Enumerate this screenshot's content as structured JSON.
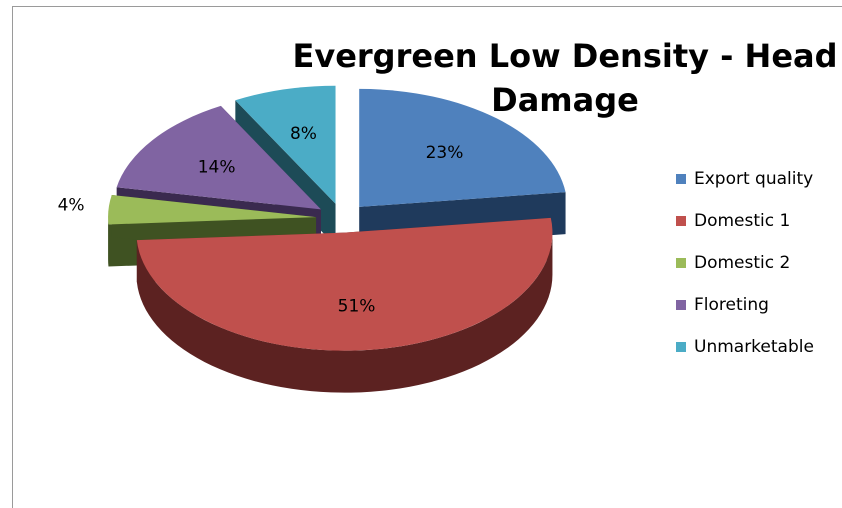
{
  "chart_data": {
    "type": "pie",
    "title": "Evergreen Low Density - Head Damage",
    "title_lines": [
      "Evergreen Low Density - Head",
      "Damage"
    ],
    "legend_position": "right",
    "slices": [
      {
        "label": "Export quality",
        "value": 23,
        "display": "23%",
        "color": "#4f81bd",
        "side_color": "#1f3a5c"
      },
      {
        "label": "Domestic 1",
        "value": 51,
        "display": "51%",
        "color": "#c0504d",
        "side_color": "#5c2221"
      },
      {
        "label": "Domestic 2",
        "value": 4,
        "display": "4%",
        "color": "#9bbb59",
        "side_color": "#3f5222"
      },
      {
        "label": "Floreting",
        "value": 14,
        "display": "14%",
        "color": "#8064a2",
        "side_color": "#3a2a4f"
      },
      {
        "label": "Unmarketable",
        "value": 8,
        "display": "8%",
        "color": "#4bacc6",
        "side_color": "#1d4b57"
      }
    ]
  }
}
